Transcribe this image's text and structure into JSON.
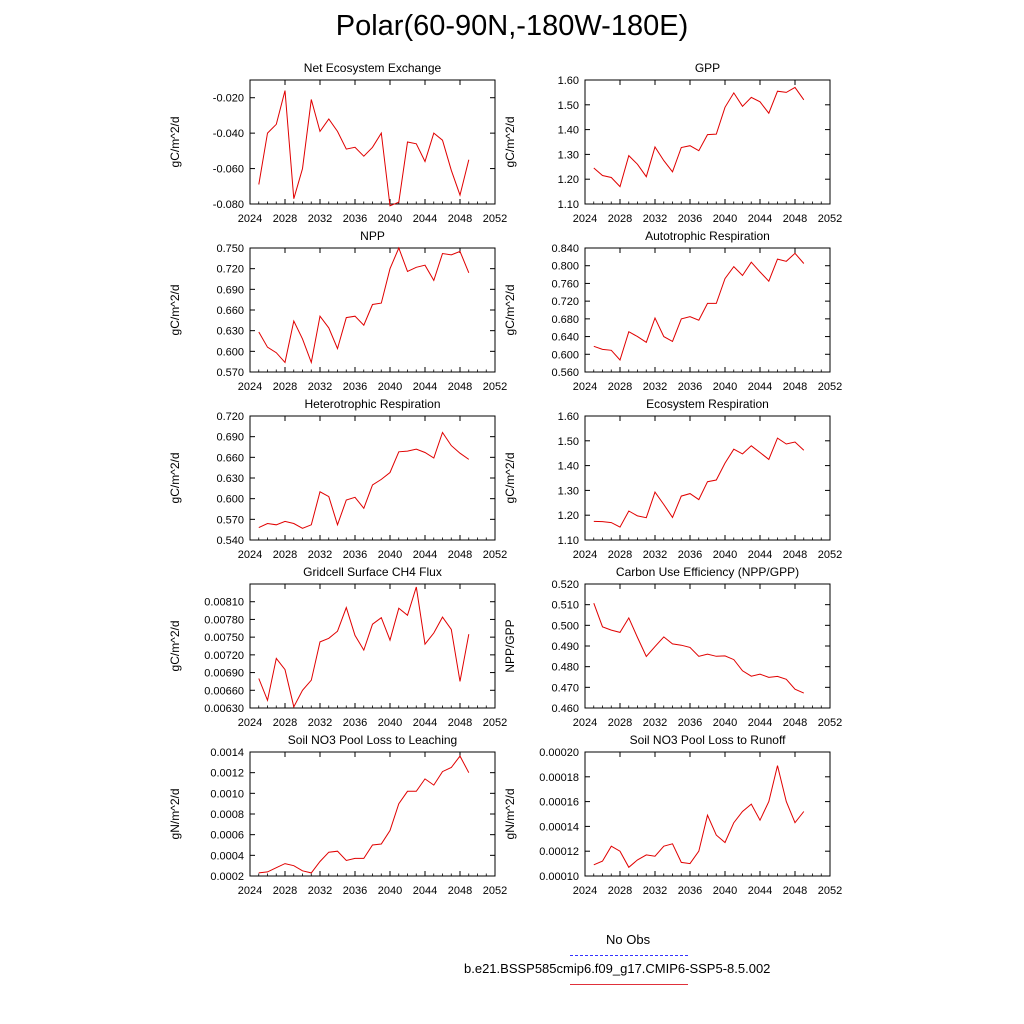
{
  "title": "Polar(60-90N,-180W-180E)",
  "legend": {
    "obs_label": "No Obs",
    "obs_color": "#3333ff",
    "model_label": "b.e21.BSSP585cmip6.f09_g17.CMIP6-SSP5-8.5.002",
    "model_color": "#e0303a"
  },
  "line_color": "#e00000",
  "chart_data": [
    {
      "type": "line",
      "title": "Net Ecosystem Exchange",
      "ylabel": "gC/m^2/d",
      "xlim": [
        2024,
        2052
      ],
      "xticks": [
        2024,
        2028,
        2032,
        2036,
        2040,
        2044,
        2048,
        2052
      ],
      "ylim": [
        -0.08,
        -0.01
      ],
      "yticks": [
        -0.08,
        -0.06,
        -0.04,
        -0.02
      ],
      "ytick_labels": [
        "-0.080",
        "-0.060",
        "-0.040",
        "-0.020"
      ],
      "series": [
        {
          "x": [
            2025,
            2026,
            2027,
            2028,
            2029,
            2030,
            2031,
            2032,
            2033,
            2034,
            2035,
            2036,
            2037,
            2038,
            2039,
            2040,
            2041,
            2042,
            2043,
            2044,
            2045,
            2046,
            2047,
            2048,
            2049
          ],
          "values": [
            -0.069,
            -0.04,
            -0.035,
            -0.016,
            -0.077,
            -0.06,
            -0.021,
            -0.039,
            -0.032,
            -0.039,
            -0.049,
            -0.048,
            -0.053,
            -0.048,
            -0.04,
            -0.081,
            -0.079,
            -0.045,
            -0.046,
            -0.056,
            -0.04,
            -0.044,
            -0.061,
            -0.075,
            -0.055
          ]
        }
      ]
    },
    {
      "type": "line",
      "title": "GPP",
      "ylabel": "gC/m^2/d",
      "xlim": [
        2024,
        2052
      ],
      "xticks": [
        2024,
        2028,
        2032,
        2036,
        2040,
        2044,
        2048,
        2052
      ],
      "ylim": [
        1.1,
        1.6
      ],
      "yticks": [
        1.1,
        1.2,
        1.3,
        1.4,
        1.5,
        1.6
      ],
      "ytick_labels": [
        "1.10",
        "1.20",
        "1.30",
        "1.40",
        "1.50",
        "1.60"
      ],
      "series": [
        {
          "x": [
            2025,
            2026,
            2027,
            2028,
            2029,
            2030,
            2031,
            2032,
            2033,
            2034,
            2035,
            2036,
            2037,
            2038,
            2039,
            2040,
            2041,
            2042,
            2043,
            2044,
            2045,
            2046,
            2047,
            2048,
            2049
          ],
          "values": [
            1.245,
            1.215,
            1.207,
            1.17,
            1.295,
            1.26,
            1.21,
            1.33,
            1.275,
            1.23,
            1.328,
            1.335,
            1.315,
            1.38,
            1.382,
            1.49,
            1.548,
            1.494,
            1.53,
            1.512,
            1.466,
            1.555,
            1.55,
            1.57,
            1.52
          ]
        }
      ]
    },
    {
      "type": "line",
      "title": "NPP",
      "ylabel": "gC/m^2/d",
      "xlim": [
        2024,
        2052
      ],
      "xticks": [
        2024,
        2028,
        2032,
        2036,
        2040,
        2044,
        2048,
        2052
      ],
      "ylim": [
        0.57,
        0.75
      ],
      "yticks": [
        0.57,
        0.6,
        0.63,
        0.66,
        0.69,
        0.72,
        0.75
      ],
      "ytick_labels": [
        "0.570",
        "0.600",
        "0.630",
        "0.660",
        "0.690",
        "0.720",
        "0.750"
      ],
      "series": [
        {
          "x": [
            2025,
            2026,
            2027,
            2028,
            2029,
            2030,
            2031,
            2032,
            2033,
            2034,
            2035,
            2036,
            2037,
            2038,
            2039,
            2040,
            2041,
            2042,
            2043,
            2044,
            2045,
            2046,
            2047,
            2048,
            2049
          ],
          "values": [
            0.628,
            0.606,
            0.598,
            0.584,
            0.644,
            0.618,
            0.584,
            0.651,
            0.634,
            0.604,
            0.649,
            0.651,
            0.638,
            0.668,
            0.67,
            0.72,
            0.75,
            0.716,
            0.722,
            0.725,
            0.703,
            0.742,
            0.74,
            0.745,
            0.714
          ]
        }
      ]
    },
    {
      "type": "line",
      "title": "Autotrophic Respiration",
      "ylabel": "gC/m^2/d",
      "xlim": [
        2024,
        2052
      ],
      "xticks": [
        2024,
        2028,
        2032,
        2036,
        2040,
        2044,
        2048,
        2052
      ],
      "ylim": [
        0.56,
        0.84
      ],
      "yticks": [
        0.56,
        0.6,
        0.64,
        0.68,
        0.72,
        0.76,
        0.8,
        0.84
      ],
      "ytick_labels": [
        "0.560",
        "0.600",
        "0.640",
        "0.680",
        "0.720",
        "0.760",
        "0.800",
        "0.840"
      ],
      "series": [
        {
          "x": [
            2025,
            2026,
            2027,
            2028,
            2029,
            2030,
            2031,
            2032,
            2033,
            2034,
            2035,
            2036,
            2037,
            2038,
            2039,
            2040,
            2041,
            2042,
            2043,
            2044,
            2045,
            2046,
            2047,
            2048,
            2049
          ],
          "values": [
            0.618,
            0.611,
            0.609,
            0.587,
            0.651,
            0.64,
            0.627,
            0.682,
            0.64,
            0.629,
            0.68,
            0.685,
            0.677,
            0.715,
            0.715,
            0.771,
            0.798,
            0.778,
            0.808,
            0.786,
            0.765,
            0.815,
            0.81,
            0.828,
            0.805
          ]
        }
      ]
    },
    {
      "type": "line",
      "title": "Heterotrophic Respiration",
      "ylabel": "gC/m^2/d",
      "xlim": [
        2024,
        2052
      ],
      "xticks": [
        2024,
        2028,
        2032,
        2036,
        2040,
        2044,
        2048,
        2052
      ],
      "ylim": [
        0.54,
        0.72
      ],
      "yticks": [
        0.54,
        0.57,
        0.6,
        0.63,
        0.66,
        0.69,
        0.72
      ],
      "ytick_labels": [
        "0.540",
        "0.570",
        "0.600",
        "0.630",
        "0.660",
        "0.690",
        "0.720"
      ],
      "series": [
        {
          "x": [
            2025,
            2026,
            2027,
            2028,
            2029,
            2030,
            2031,
            2032,
            2033,
            2034,
            2035,
            2036,
            2037,
            2038,
            2039,
            2040,
            2041,
            2042,
            2043,
            2044,
            2045,
            2046,
            2047,
            2048,
            2049
          ],
          "values": [
            0.558,
            0.564,
            0.562,
            0.567,
            0.564,
            0.557,
            0.562,
            0.61,
            0.603,
            0.562,
            0.598,
            0.602,
            0.586,
            0.62,
            0.628,
            0.638,
            0.668,
            0.669,
            0.672,
            0.667,
            0.659,
            0.696,
            0.677,
            0.666,
            0.657
          ]
        }
      ]
    },
    {
      "type": "line",
      "title": "Ecosystem Respiration",
      "ylabel": "gC/m^2/d",
      "xlim": [
        2024,
        2052
      ],
      "xticks": [
        2024,
        2028,
        2032,
        2036,
        2040,
        2044,
        2048,
        2052
      ],
      "ylim": [
        1.1,
        1.6
      ],
      "yticks": [
        1.1,
        1.2,
        1.3,
        1.4,
        1.5,
        1.6
      ],
      "ytick_labels": [
        "1.10",
        "1.20",
        "1.30",
        "1.40",
        "1.50",
        "1.60"
      ],
      "series": [
        {
          "x": [
            2025,
            2026,
            2027,
            2028,
            2029,
            2030,
            2031,
            2032,
            2033,
            2034,
            2035,
            2036,
            2037,
            2038,
            2039,
            2040,
            2041,
            2042,
            2043,
            2044,
            2045,
            2046,
            2047,
            2048,
            2049
          ],
          "values": [
            1.175,
            1.174,
            1.17,
            1.152,
            1.217,
            1.197,
            1.19,
            1.293,
            1.243,
            1.191,
            1.277,
            1.287,
            1.263,
            1.335,
            1.342,
            1.41,
            1.466,
            1.447,
            1.48,
            1.453,
            1.425,
            1.511,
            1.487,
            1.495,
            1.462
          ]
        }
      ]
    },
    {
      "type": "line",
      "title": "Gridcell Surface CH4 Flux",
      "ylabel": "gC/m^2/d",
      "xlim": [
        2024,
        2052
      ],
      "xticks": [
        2024,
        2028,
        2032,
        2036,
        2040,
        2044,
        2048,
        2052
      ],
      "ylim": [
        0.0063,
        0.0084
      ],
      "yticks": [
        0.0063,
        0.0066,
        0.0069,
        0.0072,
        0.0075,
        0.0078,
        0.0081
      ],
      "ytick_labels": [
        "0.00630",
        "0.00660",
        "0.00690",
        "0.00720",
        "0.00750",
        "0.00780",
        "0.00810"
      ],
      "series": [
        {
          "x": [
            2025,
            2026,
            2027,
            2028,
            2029,
            2030,
            2031,
            2032,
            2033,
            2034,
            2035,
            2036,
            2037,
            2038,
            2039,
            2040,
            2041,
            2042,
            2043,
            2044,
            2045,
            2046,
            2047,
            2048,
            2049
          ],
          "values": [
            0.0068,
            0.00643,
            0.00714,
            0.00695,
            0.00632,
            0.0066,
            0.00677,
            0.00742,
            0.00748,
            0.0076,
            0.008,
            0.00753,
            0.00728,
            0.00772,
            0.00783,
            0.00745,
            0.00799,
            0.00787,
            0.00835,
            0.00738,
            0.00757,
            0.00784,
            0.00763,
            0.00675,
            0.00755
          ]
        }
      ]
    },
    {
      "type": "line",
      "title": "Carbon Use Efficiency (NPP/GPP)",
      "ylabel": "NPP/GPP",
      "xlim": [
        2024,
        2052
      ],
      "xticks": [
        2024,
        2028,
        2032,
        2036,
        2040,
        2044,
        2048,
        2052
      ],
      "ylim": [
        0.46,
        0.52
      ],
      "yticks": [
        0.46,
        0.47,
        0.48,
        0.49,
        0.5,
        0.51,
        0.52
      ],
      "ytick_labels": [
        "0.460",
        "0.470",
        "0.480",
        "0.490",
        "0.500",
        "0.510",
        "0.520"
      ],
      "series": [
        {
          "x": [
            2025,
            2026,
            2027,
            2028,
            2029,
            2030,
            2031,
            2032,
            2033,
            2034,
            2035,
            2036,
            2037,
            2038,
            2039,
            2040,
            2041,
            2042,
            2043,
            2044,
            2045,
            2046,
            2047,
            2048,
            2049
          ],
          "values": [
            0.5107,
            0.4993,
            0.4977,
            0.4966,
            0.5036,
            0.4941,
            0.4849,
            0.4897,
            0.4944,
            0.491,
            0.4904,
            0.4893,
            0.485,
            0.4861,
            0.485,
            0.4852,
            0.4834,
            0.478,
            0.4754,
            0.4764,
            0.4748,
            0.4753,
            0.4739,
            0.4691,
            0.4672
          ]
        }
      ]
    },
    {
      "type": "line",
      "title": "Soil NO3 Pool Loss to Leaching",
      "ylabel": "gN/m^2/d",
      "xlim": [
        2024,
        2052
      ],
      "xticks": [
        2024,
        2028,
        2032,
        2036,
        2040,
        2044,
        2048,
        2052
      ],
      "ylim": [
        0.0002,
        0.0014
      ],
      "yticks": [
        0.0002,
        0.0004,
        0.0006,
        0.0008,
        0.001,
        0.0012,
        0.0014
      ],
      "ytick_labels": [
        "0.0002",
        "0.0004",
        "0.0006",
        "0.0008",
        "0.0010",
        "0.0012",
        "0.0014"
      ],
      "series": [
        {
          "x": [
            2025,
            2026,
            2027,
            2028,
            2029,
            2030,
            2031,
            2032,
            2033,
            2034,
            2035,
            2036,
            2037,
            2038,
            2039,
            2040,
            2041,
            2042,
            2043,
            2044,
            2045,
            2046,
            2047,
            2048,
            2049
          ],
          "values": [
            0.00023,
            0.00024,
            0.00028,
            0.00032,
            0.0003,
            0.00025,
            0.00023,
            0.00034,
            0.00043,
            0.00044,
            0.00035,
            0.00037,
            0.00037,
            0.0005,
            0.00051,
            0.00064,
            0.0009,
            0.00102,
            0.00102,
            0.00114,
            0.00108,
            0.00121,
            0.00125,
            0.00136,
            0.0012
          ]
        }
      ]
    },
    {
      "type": "line",
      "title": "Soil NO3 Pool Loss to Runoff",
      "ylabel": "gN/m^2/d",
      "xlim": [
        2024,
        2052
      ],
      "xticks": [
        2024,
        2028,
        2032,
        2036,
        2040,
        2044,
        2048,
        2052
      ],
      "ylim": [
        0.0001,
        0.0002
      ],
      "yticks": [
        0.0001,
        0.00012,
        0.00014,
        0.00016,
        0.00018,
        0.0002
      ],
      "ytick_labels": [
        "0.00010",
        "0.00012",
        "0.00014",
        "0.00016",
        "0.00018",
        "0.00020"
      ],
      "series": [
        {
          "x": [
            2025,
            2026,
            2027,
            2028,
            2029,
            2030,
            2031,
            2032,
            2033,
            2034,
            2035,
            2036,
            2037,
            2038,
            2039,
            2040,
            2041,
            2042,
            2043,
            2044,
            2045,
            2046,
            2047,
            2048,
            2049
          ],
          "values": [
            0.000109,
            0.000112,
            0.000124,
            0.00012,
            0.000107,
            0.000113,
            0.000117,
            0.000116,
            0.000124,
            0.000126,
            0.000111,
            0.00011,
            0.00012,
            0.000149,
            0.000133,
            0.000127,
            0.000143,
            0.000152,
            0.000158,
            0.000145,
            0.00016,
            0.000189,
            0.00016,
            0.000143,
            0.000152
          ]
        }
      ]
    }
  ]
}
